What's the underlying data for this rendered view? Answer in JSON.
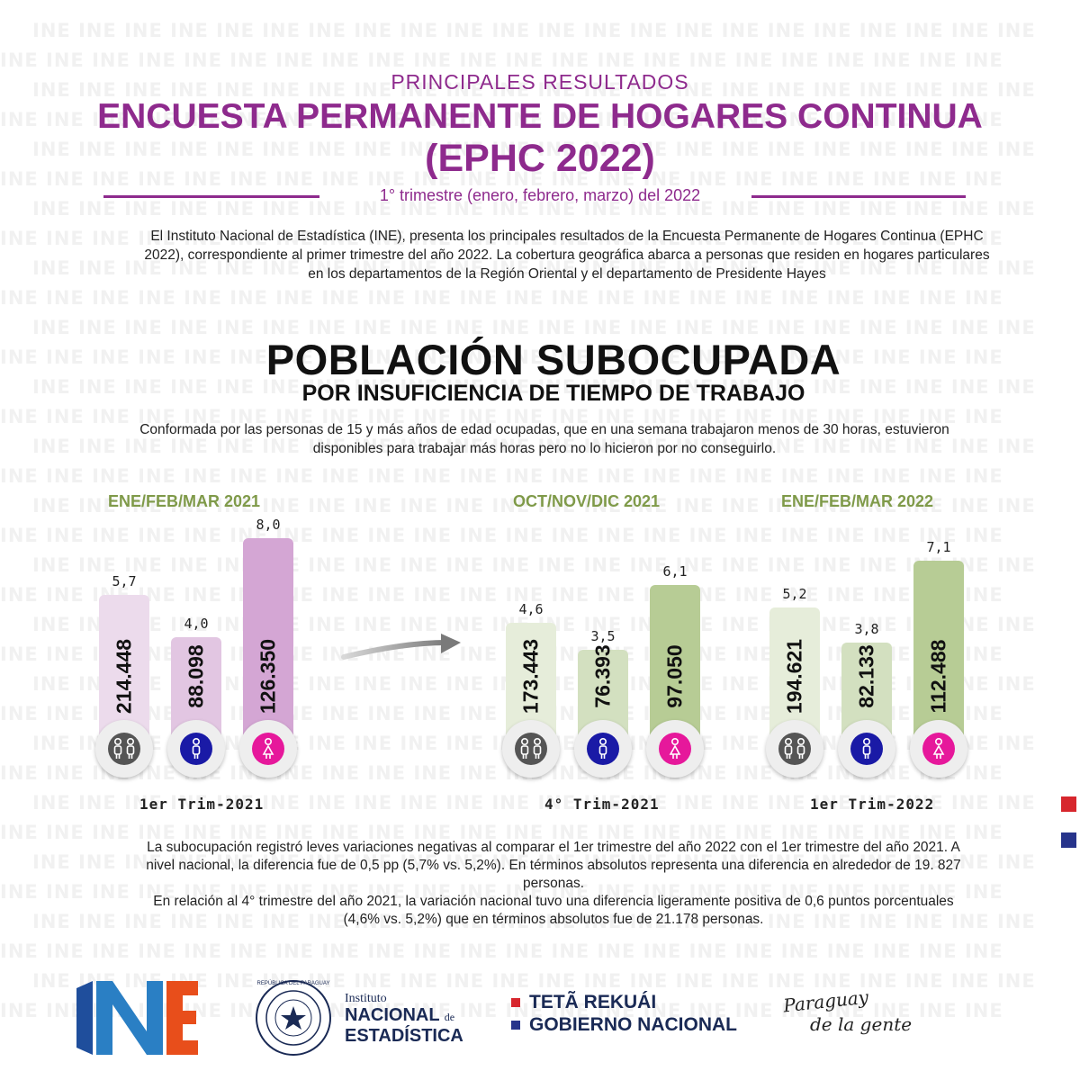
{
  "watermark_text": "INE",
  "header": {
    "kicker": "PRINCIPALES RESULTADOS",
    "title_line1": "ENCUESTA PERMANENTE DE HOGARES CONTINUA",
    "title_line2": "(EPHC 2022)",
    "period": "1° trimestre (enero, febrero, marzo) del 2022",
    "intro": "El Instituto Nacional de Estadística (INE), presenta los principales resultados de la Encuesta Permanente de Hogares Continua (EPHC 2022), correspondiente al primer trimestre del año 2022.  La cobertura geográfica abarca a personas que residen en hogares particulares en los departamentos de la Región Oriental y el departamento de Presidente Hayes"
  },
  "section": {
    "title": "POBLACIÓN SUBOCUPADA",
    "subtitle": "POR INSUFICIENCIA DE TIEMPO DE TRABAJO",
    "description": "Conformada por las personas de 15 y más años de edad ocupadas, que en una semana trabajaron menos de 30 horas, estuvieron disponibles para trabajar más horas pero no lo hicieron por no conseguirlo."
  },
  "chart_data": [
    {
      "type": "bar",
      "title": "ENE/FEB/MAR 2021",
      "xlabel": "1er Trim-2021",
      "categories": [
        "total",
        "hombres",
        "mujeres"
      ],
      "series": [
        {
          "values": [
            5.7,
            4.0,
            8.0
          ],
          "labels": [
            "5,7",
            "4,0",
            "8,0"
          ]
        },
        {
          "values": [
            214448,
            88098,
            126350
          ],
          "labels": [
            "214.448",
            "88.098",
            "126.350"
          ]
        }
      ],
      "colors": [
        "#ecdbec",
        "#e2c6e2",
        "#d4a6d4"
      ]
    },
    {
      "type": "bar",
      "title": "OCT/NOV/DIC 2021",
      "xlabel": "4° Trim-2021",
      "categories": [
        "total",
        "hombres",
        "mujeres"
      ],
      "series": [
        {
          "values": [
            4.6,
            3.5,
            6.1
          ],
          "labels": [
            "4,6",
            "3,5",
            "6,1"
          ]
        },
        {
          "values": [
            173443,
            76393,
            97050
          ],
          "labels": [
            "173.443",
            "76.393",
            "97.050"
          ]
        }
      ],
      "colors": [
        "#e6edda",
        "#d3e0c0",
        "#b7cc95"
      ]
    },
    {
      "type": "bar",
      "title": "ENE/FEB/MAR 2022",
      "xlabel": "1er Trim-2022",
      "categories": [
        "total",
        "hombres",
        "mujeres"
      ],
      "series": [
        {
          "values": [
            5.2,
            3.8,
            7.1
          ],
          "labels": [
            "5,2",
            "3,8",
            "7,1"
          ]
        },
        {
          "values": [
            194621,
            82133,
            112488
          ],
          "labels": [
            "194.621",
            "82.133",
            "112.488"
          ]
        }
      ],
      "colors": [
        "#e6edda",
        "#d3e0c0",
        "#b7cc95"
      ]
    }
  ],
  "icons": {
    "total": {
      "name": "people-icon",
      "color": "#555555"
    },
    "hombres": {
      "name": "male-icon",
      "color": "#1a1aa6"
    },
    "mujeres": {
      "name": "female-icon",
      "color": "#e6189b"
    }
  },
  "summary": {
    "paragraph1": "La subocupación registró leves variaciones negativas al comparar el 1er trimestre del año 2022 con el 1er trimestre del año 2021. A nivel nacional, la diferencia fue de 0,5 pp (5,7% vs. 5,2%). En términos absolutos representa una diferencia en alrededor de 19. 827 personas.",
    "paragraph2": "En relación al 4° trimestre del año 2021, la variación nacional tuvo una diferencia ligeramente positiva de 0,6 puntos porcentuales (4,6% vs. 5,2%) que en términos absolutos fue de 21.178 personas."
  },
  "footer": {
    "seal_text": "REPÚBLICA DEL PARAGUAY",
    "institute_small": "Instituto",
    "institute_big1": "NACIONAL",
    "institute_de": "de",
    "institute_big2": "ESTADÍSTICA",
    "gov_line1": "TETÃ REKUÁI",
    "gov_line2": "GOBIERNO NACIONAL",
    "slogan_line1": "Paraguay",
    "slogan_line2": "de la gente"
  },
  "colors": {
    "purple": "#8e2a8d",
    "green": "#7f9a49",
    "flag_red": "#d7262d",
    "flag_blue": "#27348b"
  }
}
